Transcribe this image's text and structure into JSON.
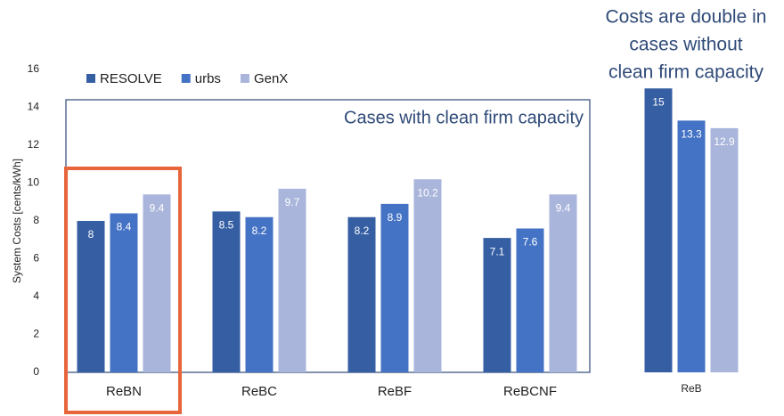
{
  "chart_data": [
    {
      "type": "bar",
      "y_label": "System Costs [cents/kWh]",
      "annotation": "Cases with clean firm capacity",
      "categories": [
        "ReBN",
        "ReBC",
        "ReBF",
        "ReBCNF"
      ],
      "series": [
        {
          "name": "RESOLVE",
          "color": "#355ea3",
          "values": [
            8,
            8.5,
            8.2,
            7.1
          ]
        },
        {
          "name": "urbs",
          "color": "#4472c4",
          "values": [
            8.4,
            8.2,
            8.9,
            7.6
          ]
        },
        {
          "name": "GenX",
          "color": "#a9b5db",
          "values": [
            9.4,
            9.7,
            10.2,
            9.4
          ]
        }
      ],
      "ylim": [
        0,
        16
      ],
      "yticks": [
        0,
        2,
        4,
        6,
        8,
        10,
        12,
        14,
        16
      ]
    },
    {
      "type": "bar",
      "title_lines": [
        "Costs are double in",
        "cases without",
        "clean firm capacity"
      ],
      "categories": [
        "ReB"
      ],
      "series": [
        {
          "color": "#355ea3",
          "values": [
            15
          ]
        },
        {
          "color": "#4472c4",
          "values": [
            13.3
          ]
        },
        {
          "color": "#a9b5db",
          "values": [
            12.9
          ]
        }
      ],
      "ylim": [
        0,
        16
      ]
    }
  ]
}
